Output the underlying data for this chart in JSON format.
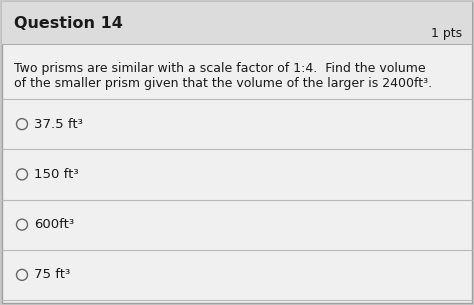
{
  "title": "Question 14",
  "pts": "1 pts",
  "question_line1": "Two prisms are similar with a scale factor of 1:4.  Find the volume",
  "question_line2": "of the smaller prism given that the volume of the larger is 2400ft³.",
  "options": [
    "37.5 ft³",
    "150 ft³",
    "600ft³",
    "75 ft³"
  ],
  "outer_bg": "#c8c8c8",
  "header_bg": "#dcdcdc",
  "body_bg": "#f0f0f0",
  "text_color": "#1a1a1a",
  "line_color": "#b8b8b8",
  "title_fontsize": 11.5,
  "pts_fontsize": 9,
  "question_fontsize": 9,
  "option_fontsize": 9.5
}
